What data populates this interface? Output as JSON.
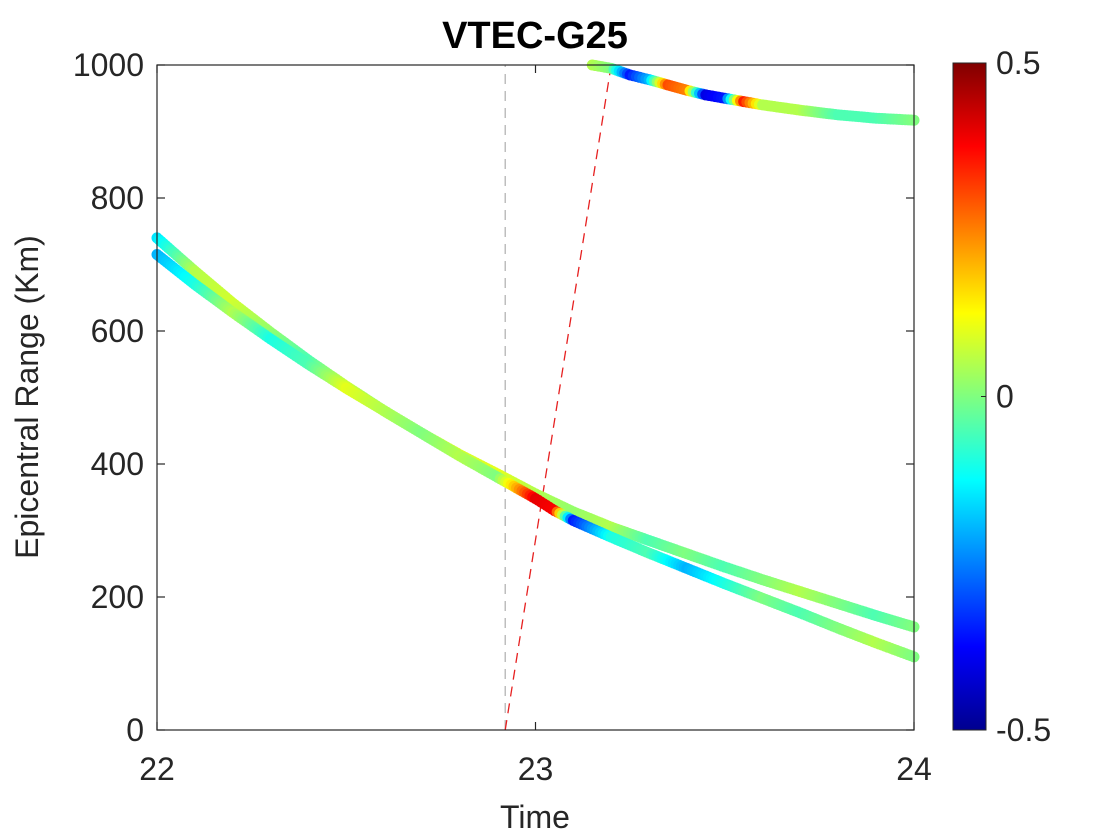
{
  "chart_data": {
    "type": "scatter",
    "title": "VTEC-G25",
    "xlabel": "Time",
    "ylabel": "Epicentral Range (Km)",
    "xlim": [
      22,
      24
    ],
    "ylim": [
      0,
      1000
    ],
    "xticks": [
      22,
      23,
      24
    ],
    "yticks": [
      0,
      200,
      400,
      600,
      800,
      1000
    ],
    "grid": false,
    "colormap": "jet",
    "colorbar": {
      "min": -0.5,
      "max": 0.5,
      "ticks": [
        "-0.5",
        "0",
        "0.5"
      ]
    },
    "series": [
      {
        "points": [
          [
            22.0,
            740,
            -0.15
          ],
          [
            22.1,
            690,
            0.05
          ],
          [
            22.2,
            642,
            0.08
          ],
          [
            22.3,
            598,
            0.02
          ],
          [
            22.4,
            556,
            -0.05
          ],
          [
            22.5,
            517,
            0.08
          ],
          [
            22.6,
            480,
            0.0
          ],
          [
            22.7,
            446,
            0.05
          ],
          [
            22.8,
            414,
            0.08
          ],
          [
            22.9,
            385,
            0.1
          ],
          [
            23.0,
            355,
            0.05
          ],
          [
            23.1,
            328,
            0.02
          ],
          [
            23.2,
            305,
            0.05
          ],
          [
            23.3,
            285,
            -0.05
          ],
          [
            23.4,
            265,
            0.0
          ],
          [
            23.5,
            245,
            -0.05
          ],
          [
            23.6,
            226,
            0.0
          ],
          [
            23.7,
            208,
            0.05
          ],
          [
            23.8,
            190,
            0.0
          ],
          [
            23.9,
            172,
            -0.05
          ],
          [
            24.0,
            155,
            0.0
          ]
        ]
      },
      {
        "points": [
          [
            22.0,
            715,
            -0.2
          ],
          [
            22.1,
            670,
            -0.1
          ],
          [
            22.2,
            628,
            0.05
          ],
          [
            22.3,
            588,
            -0.1
          ],
          [
            22.4,
            550,
            -0.05
          ],
          [
            22.5,
            514,
            0.1
          ],
          [
            22.6,
            480,
            0.05
          ],
          [
            22.7,
            446,
            0.0
          ],
          [
            22.8,
            412,
            0.05
          ],
          [
            22.9,
            380,
            0.0
          ],
          [
            23.0,
            348,
            0.4
          ],
          [
            23.05,
            330,
            0.38
          ],
          [
            23.1,
            315,
            -0.35
          ],
          [
            23.2,
            290,
            -0.1
          ],
          [
            23.3,
            266,
            -0.05
          ],
          [
            23.4,
            243,
            -0.2
          ],
          [
            23.5,
            220,
            -0.1
          ],
          [
            23.6,
            198,
            0.0
          ],
          [
            23.7,
            176,
            -0.05
          ],
          [
            23.8,
            153,
            0.0
          ],
          [
            23.9,
            131,
            0.05
          ],
          [
            24.0,
            110,
            0.0
          ]
        ]
      },
      {
        "points": [
          [
            23.15,
            1000,
            0.05
          ],
          [
            23.2,
            995,
            0.0
          ],
          [
            23.25,
            985,
            -0.35
          ],
          [
            23.3,
            978,
            -0.2
          ],
          [
            23.35,
            970,
            0.3
          ],
          [
            23.4,
            962,
            0.25
          ],
          [
            23.45,
            955,
            -0.4
          ],
          [
            23.5,
            950,
            -0.35
          ],
          [
            23.55,
            945,
            0.35
          ],
          [
            23.6,
            940,
            0.05
          ],
          [
            23.7,
            932,
            0.05
          ],
          [
            23.8,
            925,
            -0.05
          ],
          [
            23.9,
            920,
            -0.05
          ],
          [
            24.0,
            917,
            0.0
          ]
        ]
      }
    ],
    "reference_lines": [
      {
        "points": [
          [
            22.92,
            0
          ],
          [
            22.92,
            1000
          ]
        ],
        "color": "#b4b4b4"
      },
      {
        "points": [
          [
            22.92,
            0
          ],
          [
            23.2,
            1000
          ]
        ],
        "color": "#e62020"
      }
    ]
  }
}
